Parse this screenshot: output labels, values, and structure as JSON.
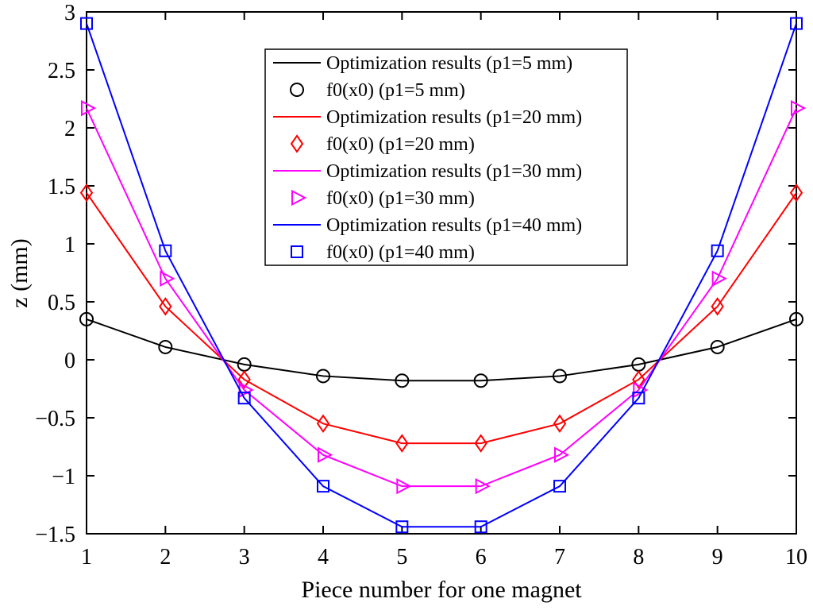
{
  "figure": {
    "background": "#ffffff"
  },
  "chart_data": {
    "type": "line",
    "title": "",
    "xlabel": "Piece number for one magnet",
    "ylabel": "z (mm)",
    "xlim": [
      1,
      10
    ],
    "ylim": [
      -1.5,
      3
    ],
    "x": [
      1,
      2,
      3,
      4,
      5,
      6,
      7,
      8,
      9,
      10
    ],
    "xticks": [
      1,
      2,
      3,
      4,
      5,
      6,
      7,
      8,
      9,
      10
    ],
    "xtick_labels": [
      "1",
      "2",
      "3",
      "4",
      "5",
      "6",
      "7",
      "8",
      "9",
      "10"
    ],
    "yticks": [
      3,
      2.5,
      2,
      1.5,
      1,
      0.5,
      0,
      -0.5,
      -1,
      -1.5
    ],
    "ytick_labels": [
      "3",
      "2.5",
      "2",
      "1.5",
      "1",
      "0.5",
      "0",
      "−0.5",
      "−1",
      "−1.5"
    ],
    "grid": false,
    "axis_color": "#000000",
    "legend": {
      "position": "upper-center-inside",
      "border_color": "#000000",
      "background": "#ffffff"
    },
    "series": [
      {
        "line_label": "Optimization results (p1=5 mm)",
        "marker_label": "f0(x0) (p1=5 mm)",
        "color": "#000000",
        "marker": "circle",
        "values": [
          0.35,
          0.11,
          -0.04,
          -0.14,
          -0.18,
          -0.18,
          -0.14,
          -0.04,
          0.11,
          0.35
        ]
      },
      {
        "line_label": "Optimization results (p1=20 mm)",
        "marker_label": "f0(x0) (p1=20 mm)",
        "color": "#ff0000",
        "marker": "diamond",
        "values": [
          1.44,
          0.46,
          -0.17,
          -0.55,
          -0.72,
          -0.72,
          -0.55,
          -0.17,
          0.46,
          1.44
        ]
      },
      {
        "line_label": "Optimization results (p1=30 mm)",
        "marker_label": "f0(x0) (p1=30 mm)",
        "color": "#ff00ff",
        "marker": "triangle-right",
        "values": [
          2.17,
          0.7,
          -0.26,
          -0.82,
          -1.09,
          -1.09,
          -0.82,
          -0.26,
          0.7,
          2.17
        ]
      },
      {
        "line_label": "Optimization results (p1=40 mm)",
        "marker_label": "f0(x0) (p1=40 mm)",
        "color": "#0000ff",
        "marker": "square",
        "values": [
          2.9,
          0.94,
          -0.33,
          -1.09,
          -1.44,
          -1.44,
          -1.09,
          -0.33,
          0.94,
          2.9
        ]
      }
    ]
  }
}
